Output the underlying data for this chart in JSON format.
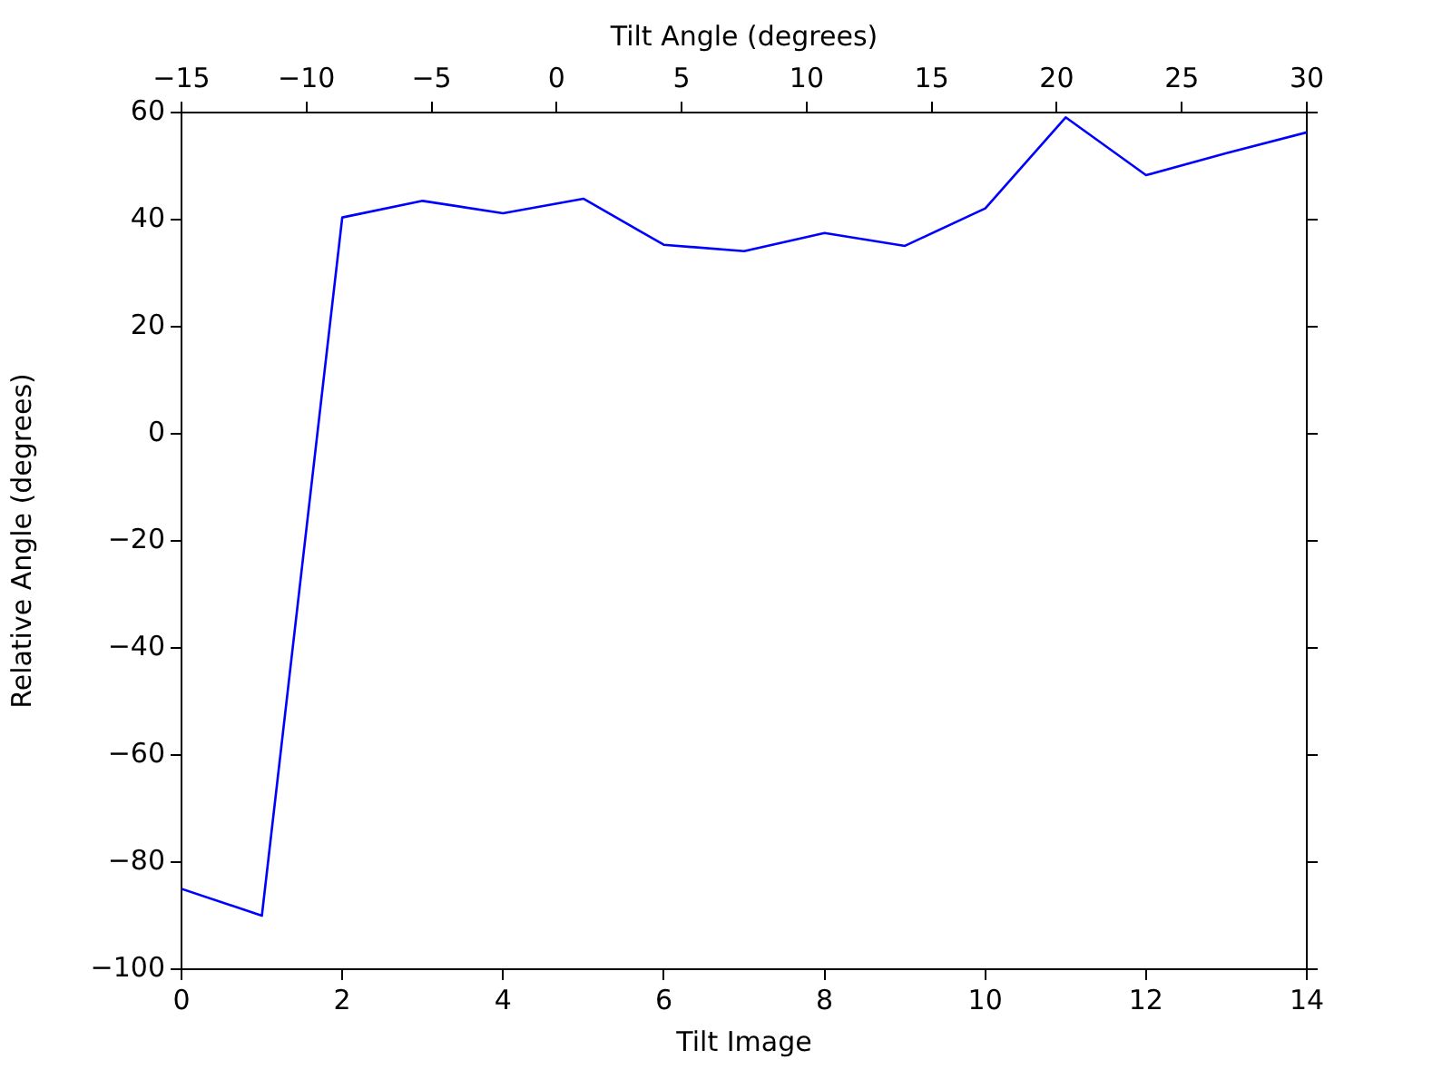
{
  "chart_data": {
    "type": "line",
    "xlabel": "Tilt Image",
    "ylabel": "Relative Angle (degrees)",
    "x2label": "Tilt Angle (degrees)",
    "x": [
      0,
      1,
      2,
      3,
      4,
      5,
      6,
      7,
      8,
      9,
      10,
      11,
      12,
      13,
      14
    ],
    "series": [
      {
        "color": "#0000ff",
        "values": [
          -85,
          -90,
          40.4,
          43.5,
          41.2,
          43.9,
          35.3,
          34.1,
          37.5,
          35.1,
          42.1,
          59.1,
          48.3,
          52.4,
          56.3
        ]
      }
    ],
    "xlim": [
      0,
      14
    ],
    "xticks": [
      0,
      2,
      4,
      6,
      8,
      10,
      12,
      14
    ],
    "x2lim": [
      -15,
      30
    ],
    "x2ticks": [
      -15,
      -10,
      -5,
      0,
      5,
      10,
      15,
      20,
      25,
      30
    ],
    "ylim": [
      -100,
      60
    ],
    "yticks": [
      -100,
      -80,
      -60,
      -40,
      -20,
      0,
      20,
      40,
      60
    ],
    "grid": false,
    "legend": false,
    "marker": "none",
    "line_style": "solid"
  }
}
